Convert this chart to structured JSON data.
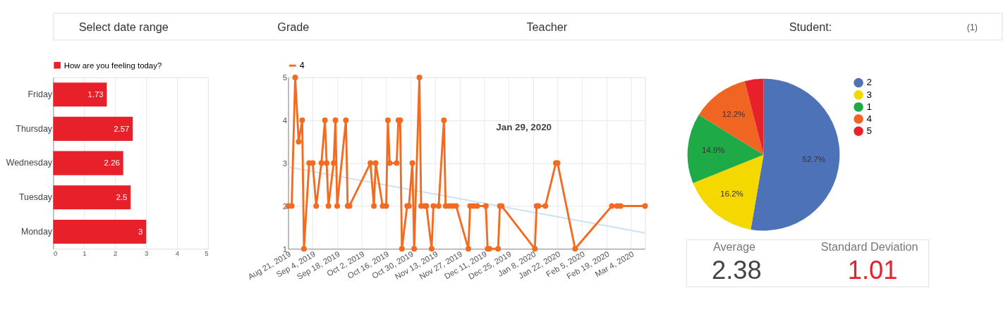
{
  "chart_data": [
    {
      "type": "other",
      "annotations": [
        "Select date range",
        "Grade",
        "Teacher",
        "Student:",
        "(1)"
      ]
    },
    {
      "type": "bar",
      "orientation": "horizontal",
      "categories": [
        "Friday",
        "Thursday",
        "Wednesday",
        "Tuesday",
        "Monday"
      ],
      "series": [
        {
          "name": "How are you feeling today?",
          "color": "#e8202a",
          "values": [
            1.73,
            2.57,
            2.26,
            2.5,
            3
          ]
        }
      ],
      "xlim": [
        0,
        5
      ],
      "xticks": [
        0,
        1,
        2,
        3,
        4,
        5
      ],
      "grid": "x",
      "legend": "top left",
      "data_labels": true
    },
    {
      "type": "line",
      "marker": "circle",
      "grid": true,
      "legend": "top left",
      "annotations": [
        "Jan 29, 2020"
      ],
      "xlim": [
        "2019-08-21",
        "2020-03-12"
      ],
      "xticks": [
        {
          "value": "2019-08-21",
          "label": "Aug 21, 2019"
        },
        {
          "value": "2019-09-04",
          "label": "Sep 4, 2019"
        },
        {
          "value": "2019-09-18",
          "label": "Sep 18, 2019"
        },
        {
          "value": "2019-10-02",
          "label": "Oct 2, 2019"
        },
        {
          "value": "2019-10-16",
          "label": "Oct 16, 2019"
        },
        {
          "value": "2019-10-30",
          "label": "Oct 30, 2019"
        },
        {
          "value": "2019-11-13",
          "label": "Nov 13, 2019"
        },
        {
          "value": "2019-11-27",
          "label": "Nov 27, 2019"
        },
        {
          "value": "2019-12-11",
          "label": "Dec 11, 2019"
        },
        {
          "value": "2019-12-25",
          "label": "Dec 25, 2019"
        },
        {
          "value": "2020-01-08",
          "label": "Jan 8, 2020"
        },
        {
          "value": "2020-01-22",
          "label": "Jan 22, 2020"
        },
        {
          "value": "2020-02-05",
          "label": "Feb 5, 2020"
        },
        {
          "value": "2020-02-19",
          "label": "Feb 19, 2020"
        },
        {
          "value": "2020-03-04",
          "label": "Mar 4, 2020"
        }
      ],
      "ylim": [
        1,
        5
      ],
      "yticks": [
        1,
        2,
        3,
        4,
        5
      ],
      "series": [
        {
          "type": "line",
          "marker": "none",
          "color": "#cfe0f1",
          "x": [
            "2019-08-21",
            "2020-03-12"
          ],
          "values": [
            2.91,
            1.37
          ]
        },
        {
          "name": "4",
          "color": "#f26b21",
          "x": [
            "2019-08-21",
            "2019-08-23",
            "2019-08-25",
            "2019-08-27",
            "2019-08-29",
            "2019-08-30",
            "2019-09-02",
            "2019-09-04",
            "2019-09-06",
            "2019-09-09",
            "2019-09-11",
            "2019-09-12",
            "2019-09-13",
            "2019-09-16",
            "2019-09-17",
            "2019-09-18",
            "2019-09-23",
            "2019-09-24",
            "2019-09-25",
            "2019-10-07",
            "2019-10-09",
            "2019-10-10",
            "2019-10-14",
            "2019-10-16",
            "2019-10-17",
            "2019-10-18",
            "2019-10-22",
            "2019-10-23",
            "2019-10-24",
            "2019-10-25",
            "2019-10-28",
            "2019-10-29",
            "2019-10-31",
            "2019-11-01",
            "2019-11-04",
            "2019-11-05",
            "2019-11-07",
            "2019-11-08",
            "2019-11-11",
            "2019-11-12",
            "2019-11-15",
            "2019-11-18",
            "2019-11-19",
            "2019-11-21",
            "2019-11-23",
            "2019-11-25",
            "2019-12-02",
            "2019-12-03",
            "2019-12-05",
            "2019-12-07",
            "2019-12-12",
            "2019-12-13",
            "2019-12-14",
            "2019-12-19",
            "2019-12-20",
            "2019-12-21",
            "2020-01-09",
            "2020-01-10",
            "2020-01-11",
            "2020-01-15",
            "2020-01-21",
            "2020-01-22",
            "2020-02-01",
            "2020-02-22",
            "2020-02-25",
            "2020-02-27",
            "2020-03-12"
          ],
          "values": [
            2,
            2,
            5,
            3.5,
            4,
            1,
            3,
            3,
            2,
            3,
            4,
            3,
            2,
            3,
            4,
            2,
            4,
            2,
            2,
            3,
            2,
            3,
            2,
            2,
            4,
            3,
            3,
            4,
            4,
            1,
            2,
            2,
            3,
            1,
            5,
            2,
            2,
            2,
            1,
            2,
            2,
            4,
            2,
            2,
            2,
            2,
            1,
            2,
            2,
            2,
            2,
            1,
            1,
            1,
            2,
            2,
            1,
            2,
            2,
            2,
            3,
            3,
            1,
            2,
            2,
            2,
            2
          ]
        }
      ]
    },
    {
      "type": "pie",
      "categories": [
        "2",
        "3",
        "1",
        "4",
        "5"
      ],
      "values": [
        52.7,
        16.2,
        14.9,
        12.2,
        4.0
      ],
      "colors": [
        "#4e72b8",
        "#f5d800",
        "#1faa48",
        "#f06522",
        "#e8202a"
      ],
      "value_labels": [
        "52.7%",
        "16.2%",
        "14.9%",
        "12.2%",
        null
      ],
      "legend": "right"
    },
    {
      "type": "other",
      "annotations": [
        "Average",
        "2.38",
        "Standard Deviation",
        "1.01"
      ]
    }
  ]
}
